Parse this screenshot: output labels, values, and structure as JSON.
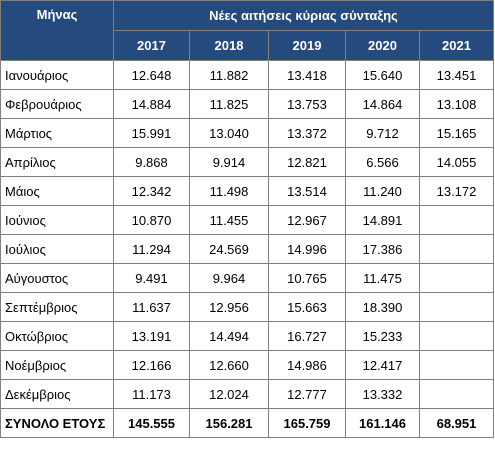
{
  "header": {
    "title": "Μήνας",
    "group": "Νέες αιτήσεις κύριας σύνταξης",
    "years": [
      "2017",
      "2018",
      "2019",
      "2020",
      "2021"
    ]
  },
  "table": {
    "rows": [
      [
        "Ιανουάριος",
        "12.648",
        "11.882",
        "13.418",
        "15.640",
        "13.451"
      ],
      [
        "Φεβρουάριος",
        "14.884",
        "11.825",
        "13.753",
        "14.864",
        "13.108"
      ],
      [
        "Μάρτιος",
        "15.991",
        "13.040",
        "13.372",
        "9.712",
        "15.165"
      ],
      [
        "Απρίλιος",
        "9.868",
        "9.914",
        "12.821",
        "6.566",
        "14.055"
      ],
      [
        "Μάιος",
        "12.342",
        "11.498",
        "13.514",
        "11.240",
        "13.172"
      ],
      [
        "Ιούνιος",
        "10.870",
        "11.455",
        "12.967",
        "14.891",
        null
      ],
      [
        "Ιούλιος",
        "11.294",
        "24.569",
        "14.996",
        "17.386",
        null
      ],
      [
        "Αύγουστος",
        "9.491",
        "9.964",
        "10.765",
        "11.475",
        null
      ],
      [
        "Σεπτέμβριος",
        "11.637",
        "12.956",
        "15.663",
        "18.390",
        null
      ],
      [
        "Οκτώβριος",
        "13.191",
        "14.494",
        "16.727",
        "15.233",
        null
      ],
      [
        "Νοέμβριος",
        "12.166",
        "12.660",
        "14.986",
        "12.417",
        null
      ],
      [
        "Δεκέμβριος",
        "11.173",
        "12.024",
        "12.777",
        "13.332",
        null
      ]
    ],
    "total": [
      "ΣΥΝΟΛΟ ΕΤΟΥΣ",
      "145.555",
      "156.281",
      "165.759",
      "161.146",
      "68.951"
    ]
  }
}
